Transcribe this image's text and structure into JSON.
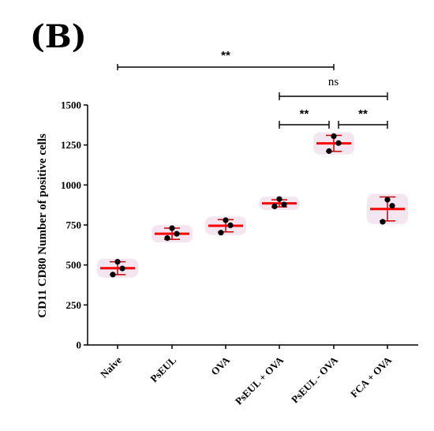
{
  "panel_label": "(B)",
  "chart_data": {
    "type": "scatter",
    "ylabel": "CD11 CD80 Number of positive cells",
    "xlabel": "",
    "ylim": [
      0,
      1500
    ],
    "yticks": [
      0,
      250,
      500,
      750,
      1000,
      1250,
      1500
    ],
    "categories": [
      "Naive",
      "PsEUL",
      "OVA",
      "PsEUL + OVA",
      "PsEUL - OVA",
      "FCA + OVA"
    ],
    "means": [
      480,
      695,
      745,
      885,
      1260,
      850
    ],
    "errors": [
      40,
      35,
      38,
      22,
      50,
      75
    ],
    "points": [
      [
        520,
        478,
        440
      ],
      [
        730,
        695,
        668
      ],
      [
        780,
        748,
        702
      ],
      [
        912,
        878,
        866
      ],
      [
        1305,
        1262,
        1212
      ],
      [
        908,
        870,
        770
      ]
    ],
    "colors": {
      "mean_line": "#ff0000",
      "error_bar": "#cc0000",
      "point": "#000000",
      "band": "#f3e3ef"
    },
    "significance": [
      {
        "from": 0,
        "to": 4,
        "label": "**"
      },
      {
        "from": 3,
        "to": 5,
        "label": "ns"
      },
      {
        "from": 3,
        "to": 4,
        "label": "**"
      },
      {
        "from": 4,
        "to": 5,
        "label": "**"
      }
    ],
    "grid": false,
    "legend": "none"
  }
}
